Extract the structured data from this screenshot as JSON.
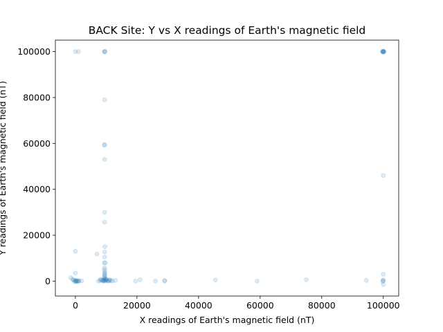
{
  "chart_data": {
    "type": "scatter",
    "title": "BACK Site: Y vs X readings of Earth's magnetic field",
    "xlabel": "X readings of Earth's magnetic field (nT)",
    "ylabel": "Y readings of Earth's magnetic field (nT)",
    "xlim": [
      -6500,
      105000
    ],
    "ylim": [
      -6500,
      105000
    ],
    "xticks": [
      {
        "value": 0,
        "label": "0"
      },
      {
        "value": 20000,
        "label": "20000"
      },
      {
        "value": 40000,
        "label": "40000"
      },
      {
        "value": 60000,
        "label": "60000"
      },
      {
        "value": 80000,
        "label": "80000"
      },
      {
        "value": 100000,
        "label": "100000"
      }
    ],
    "yticks": [
      {
        "value": 0,
        "label": "0"
      },
      {
        "value": 20000,
        "label": "20000"
      },
      {
        "value": 40000,
        "label": "40000"
      },
      {
        "value": 60000,
        "label": "60000"
      },
      {
        "value": 80000,
        "label": "80000"
      },
      {
        "value": 100000,
        "label": "100000"
      }
    ],
    "grid": false,
    "legend": "none",
    "marker_color": "#1f77b4",
    "marker_alpha": 0.15,
    "points": [
      {
        "x": 100000,
        "y": 100000
      },
      {
        "x": 99700,
        "y": 100000
      },
      {
        "x": 100300,
        "y": 100000
      },
      {
        "x": 100000,
        "y": 99800
      },
      {
        "x": 99900,
        "y": 100200
      },
      {
        "x": 100100,
        "y": 100000
      },
      {
        "x": 100000,
        "y": 100000
      },
      {
        "x": 99800,
        "y": 99900
      },
      {
        "x": 9500,
        "y": 100000
      },
      {
        "x": 9400,
        "y": 100000
      },
      {
        "x": 9600,
        "y": 100000
      },
      {
        "x": 0,
        "y": 100000
      },
      {
        "x": 1000,
        "y": 100000
      },
      {
        "x": 9500,
        "y": 79000
      },
      {
        "x": 9500,
        "y": 59500
      },
      {
        "x": 9400,
        "y": 59200
      },
      {
        "x": 9500,
        "y": 53000
      },
      {
        "x": 100000,
        "y": 46000
      },
      {
        "x": 9500,
        "y": 30000
      },
      {
        "x": 9500,
        "y": 25700
      },
      {
        "x": 9600,
        "y": 15000
      },
      {
        "x": 9500,
        "y": 12700
      },
      {
        "x": 0,
        "y": 13000
      },
      {
        "x": 9500,
        "y": 10500
      },
      {
        "x": 9400,
        "y": 8000
      },
      {
        "x": 9700,
        "y": 8000
      },
      {
        "x": 7000,
        "y": 11800
      },
      {
        "x": 9500,
        "y": 5800
      },
      {
        "x": 9400,
        "y": 5000
      },
      {
        "x": 9600,
        "y": 4200
      },
      {
        "x": 9500,
        "y": 3500
      },
      {
        "x": 9500,
        "y": 3000
      },
      {
        "x": 9500,
        "y": 2500
      },
      {
        "x": 9500,
        "y": 2000
      },
      {
        "x": 9500,
        "y": 1500
      },
      {
        "x": 9500,
        "y": 1000
      },
      {
        "x": 8000,
        "y": 300
      },
      {
        "x": 8500,
        "y": 500
      },
      {
        "x": 9000,
        "y": 0
      },
      {
        "x": 9500,
        "y": 200
      },
      {
        "x": 10000,
        "y": 400
      },
      {
        "x": 10500,
        "y": 100
      },
      {
        "x": 11000,
        "y": 300
      },
      {
        "x": 11500,
        "y": 200
      },
      {
        "x": 12000,
        "y": 100
      },
      {
        "x": 7500,
        "y": 0
      },
      {
        "x": 8200,
        "y": 800
      },
      {
        "x": 9800,
        "y": 900
      },
      {
        "x": 10200,
        "y": 700
      },
      {
        "x": 11200,
        "y": 600
      },
      {
        "x": 13000,
        "y": 300
      },
      {
        "x": 9200,
        "y": 300
      },
      {
        "x": 9700,
        "y": 100
      },
      {
        "x": 8800,
        "y": 200
      },
      {
        "x": 10800,
        "y": 0
      },
      {
        "x": 9100,
        "y": 600
      },
      {
        "x": 9900,
        "y": 500
      },
      {
        "x": 0,
        "y": 0
      },
      {
        "x": -300,
        "y": 200
      },
      {
        "x": 300,
        "y": -100
      },
      {
        "x": 600,
        "y": 100
      },
      {
        "x": 1000,
        "y": 0
      },
      {
        "x": 1200,
        "y": 200
      },
      {
        "x": -600,
        "y": 500
      },
      {
        "x": 200,
        "y": 300
      },
      {
        "x": 800,
        "y": -200
      },
      {
        "x": 0,
        "y": 3500
      },
      {
        "x": -1500,
        "y": 1500
      },
      {
        "x": -1000,
        "y": 800
      },
      {
        "x": 2000,
        "y": 100
      },
      {
        "x": -200,
        "y": -300
      },
      {
        "x": 400,
        "y": 0
      },
      {
        "x": 19500,
        "y": 0
      },
      {
        "x": 21000,
        "y": 600
      },
      {
        "x": 26000,
        "y": 0
      },
      {
        "x": 29000,
        "y": 300
      },
      {
        "x": 29000,
        "y": 0
      },
      {
        "x": 45500,
        "y": 500
      },
      {
        "x": 59000,
        "y": 0
      },
      {
        "x": 75000,
        "y": 600
      },
      {
        "x": 94500,
        "y": 300
      },
      {
        "x": 100000,
        "y": 3000
      },
      {
        "x": 100000,
        "y": 500
      },
      {
        "x": 100000,
        "y": 100
      },
      {
        "x": 100000,
        "y": -1500
      },
      {
        "x": 99800,
        "y": 0
      }
    ]
  }
}
